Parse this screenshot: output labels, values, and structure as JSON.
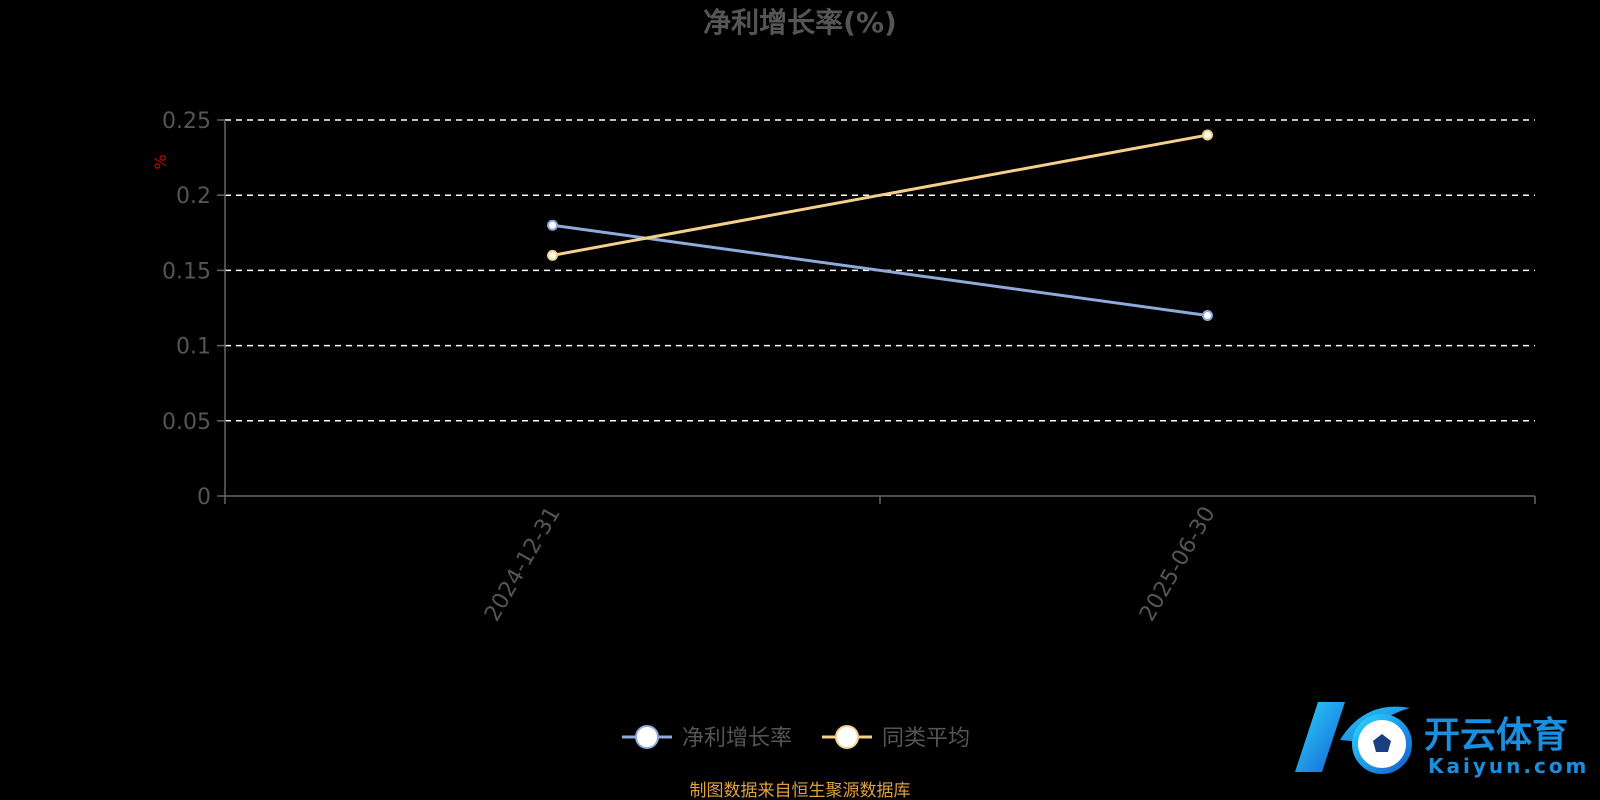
{
  "chart_data": {
    "type": "line",
    "title": "净利增长率(%)",
    "ylabel": "%",
    "xlabel": "",
    "categories": [
      "2024-12-31",
      "2025-06-30"
    ],
    "series": [
      {
        "name": "净利增长率",
        "values": [
          0.18,
          0.12
        ],
        "color": "#8ea9db"
      },
      {
        "name": "同类平均",
        "values": [
          0.16,
          0.24
        ],
        "color": "#f5d08a"
      }
    ],
    "ylim": [
      0,
      0.25
    ],
    "yticks": [
      "0",
      "0.05",
      "0.1",
      "0.15",
      "0.2",
      "0.25"
    ],
    "ytick_values": [
      0,
      0.05,
      0.1,
      0.15,
      0.2,
      0.25
    ],
    "grid": true,
    "legend_position": "bottom-center"
  },
  "footer": {
    "source": "制图数据来自恒生聚源数据库"
  },
  "watermark": {
    "brand_cn": "开云体育",
    "brand_en": "Kaiyun.com"
  },
  "colors": {
    "background": "#000000",
    "axis": "#666666",
    "grid": "#ffffff",
    "text": "#555555",
    "source": "#e0a040",
    "logo_blue": "#1a8fe0"
  }
}
